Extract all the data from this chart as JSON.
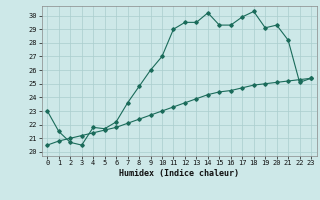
{
  "xlabel": "Humidex (Indice chaleur)",
  "bg_color": "#cde8e8",
  "grid_color": "#aacece",
  "line_color": "#1a6b5a",
  "xlim": [
    -0.5,
    23.5
  ],
  "ylim": [
    19.7,
    30.7
  ],
  "yticks": [
    20,
    21,
    22,
    23,
    24,
    25,
    26,
    27,
    28,
    29,
    30
  ],
  "xticks": [
    0,
    1,
    2,
    3,
    4,
    5,
    6,
    7,
    8,
    9,
    10,
    11,
    12,
    13,
    14,
    15,
    16,
    17,
    18,
    19,
    20,
    21,
    22,
    23
  ],
  "line1_x": [
    0,
    1,
    2,
    3,
    4,
    5,
    6,
    7,
    8,
    9,
    10,
    11,
    12,
    13,
    14,
    15,
    16,
    17,
    18,
    19,
    20,
    21,
    22,
    23
  ],
  "line1_y": [
    23.0,
    21.5,
    20.7,
    20.5,
    21.8,
    21.7,
    22.2,
    23.6,
    24.8,
    26.0,
    27.0,
    29.0,
    29.5,
    29.5,
    30.2,
    29.3,
    29.3,
    29.9,
    30.3,
    29.1,
    29.3,
    28.2,
    25.1,
    25.4
  ],
  "line2_x": [
    0,
    1,
    2,
    3,
    4,
    5,
    6,
    7,
    8,
    9,
    10,
    11,
    12,
    13,
    14,
    15,
    16,
    17,
    18,
    19,
    20,
    21,
    22,
    23
  ],
  "line2_y": [
    20.5,
    20.8,
    21.0,
    21.2,
    21.4,
    21.6,
    21.8,
    22.1,
    22.4,
    22.7,
    23.0,
    23.3,
    23.6,
    23.9,
    24.2,
    24.4,
    24.5,
    24.7,
    24.9,
    25.0,
    25.1,
    25.2,
    25.3,
    25.4
  ]
}
